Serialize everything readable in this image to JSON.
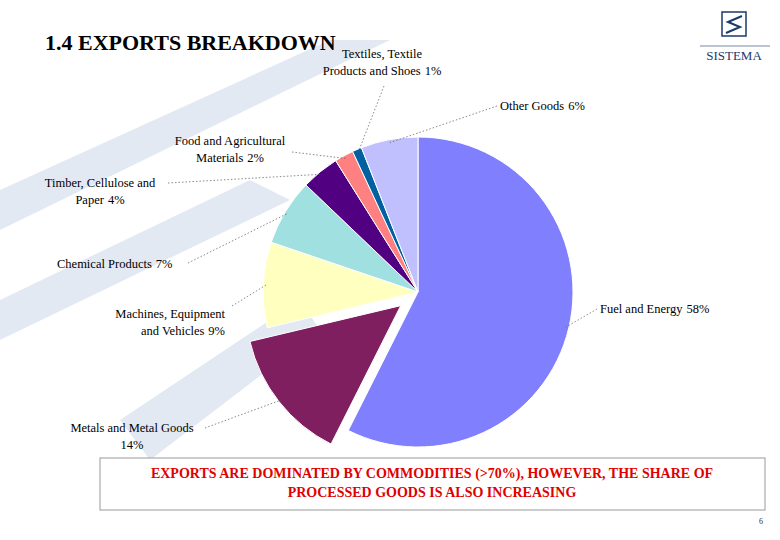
{
  "chart_data": {
    "type": "pie",
    "title": "1.4 EXPORTS BREAKDOWN",
    "categories": [
      "Fuel and Energy",
      "Metals and Metal Goods",
      "Machines, Equipment and Vehicles",
      "Chemical Products",
      "Timber, Cellulose and Paper",
      "Food and Agricultural Materials",
      "Textiles, Textile Products and Shoes",
      "Other Goods"
    ],
    "values": [
      58,
      14,
      9,
      7,
      4,
      2,
      1,
      6
    ],
    "value_labels": [
      "58%",
      "14%",
      "9%",
      "7%",
      "4%",
      "2%",
      "1%",
      "6%"
    ],
    "colors": [
      "#8080ff",
      "#7f1f5f",
      "#ffffc0",
      "#a0e0e0",
      "#500080",
      "#ff8080",
      "#0060a0",
      "#c0c0ff"
    ],
    "data_labels": true,
    "annotations": [
      "EXPORTS ARE DOMINATED BY COMMODITIES (>70%), HOWEVER, THE SHARE OF",
      "PROCESSED GOODS IS ALSO INCREASING"
    ]
  },
  "page": {
    "logo": "SISTEMA",
    "page_number": "6"
  }
}
